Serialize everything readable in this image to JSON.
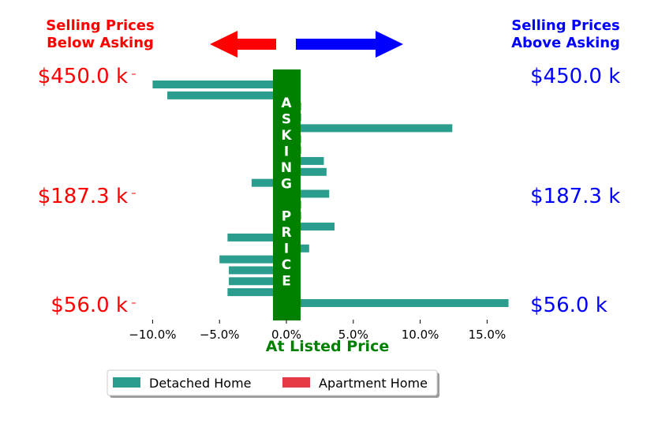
{
  "header": {
    "left_label_line1": "Selling Prices",
    "left_label_line2": "Below Asking",
    "right_label_line1": "Selling Prices",
    "right_label_line2": "Above Asking",
    "left_arrow_color": "#ff0000",
    "right_arrow_color": "#0000ff"
  },
  "price_labels": {
    "left": [
      "$450.0 k",
      "$187.3 k",
      "$56.0 k"
    ],
    "right": [
      "$450.0 k",
      "$187.3 k",
      "$56.0 k"
    ],
    "left_color": "#ff0000",
    "right_color": "#0000ff"
  },
  "asking_band": {
    "text": "ASKING PRICE",
    "color": "#008000"
  },
  "xaxis": {
    "label": "At Listed Price",
    "label_color": "#008000",
    "ticks": [
      -10,
      -5,
      0,
      5,
      10,
      15
    ],
    "tick_labels": [
      "−10.0%",
      "−5.0%",
      "0.0%",
      "5.0%",
      "10.0%",
      "15.0%"
    ]
  },
  "legend": {
    "items": [
      {
        "label": "Detached Home",
        "color": "#2a9d8f"
      },
      {
        "label": "Apartment Home",
        "color": "#e63946"
      }
    ]
  },
  "chart_data": {
    "type": "bar",
    "orientation": "horizontal",
    "xlabel": "At Listed Price",
    "xlim": [
      -12,
      16.5
    ],
    "series": [
      {
        "name": "Detached Home",
        "color": "#2a9d8f",
        "values": [
          -10.0,
          -8.9,
          1.1,
          0.5,
          12.4,
          1.1,
          1.1,
          2.8,
          3.0,
          -2.6,
          3.2,
          1.1,
          1.1,
          3.6,
          -4.4,
          1.7,
          -5.0,
          -4.3,
          -4.3,
          -4.4,
          16.6
        ]
      },
      {
        "name": "Apartment Home",
        "color": "#e63946",
        "values": [
          0,
          0,
          0,
          1.1,
          0,
          0,
          0,
          0,
          0,
          0,
          0,
          0,
          0,
          0,
          0,
          0,
          0,
          0,
          0,
          0,
          0
        ]
      }
    ],
    "y_tick_labels": [
      "$450.0 k",
      "$187.3 k",
      "$56.0 k"
    ],
    "grid": false,
    "legend_position": "bottom"
  }
}
